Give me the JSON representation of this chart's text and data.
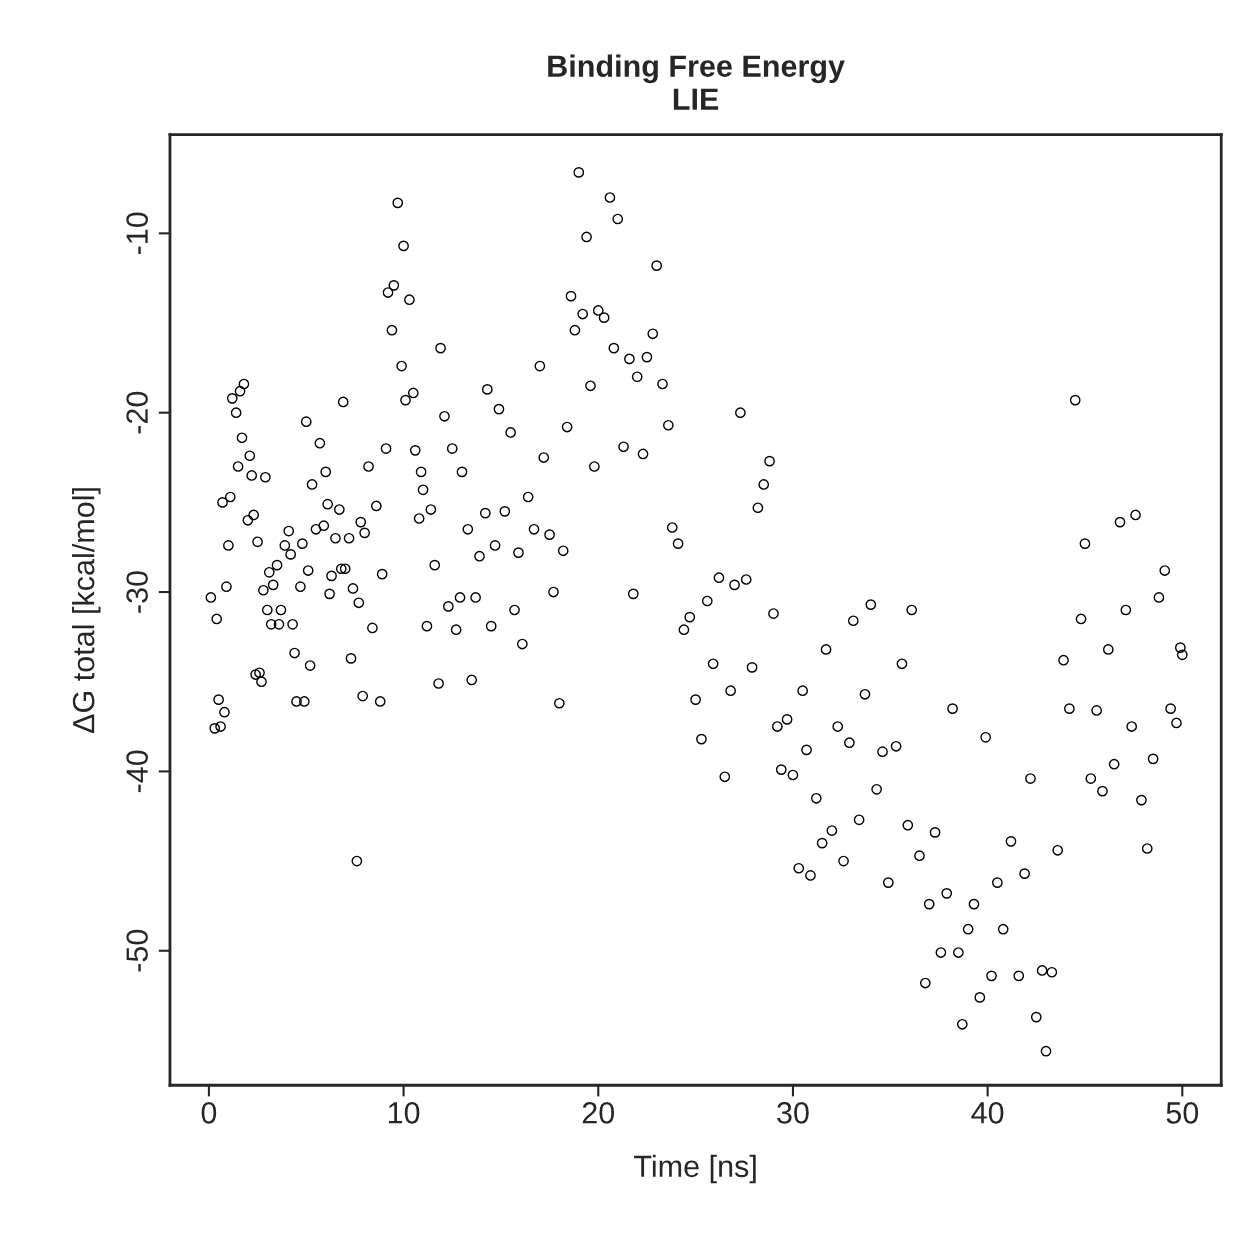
{
  "chart_data": {
    "type": "scatter",
    "title": "Binding Free Energy\nLIE",
    "xlabel": "Time [ns]",
    "ylabel": "ΔG total [kcal/mol]",
    "xlim": [
      -2,
      52
    ],
    "ylim": [
      -57.5,
      -4.5
    ],
    "xticks": [
      0,
      10,
      20,
      30,
      40,
      50
    ],
    "yticks": [
      -50,
      -40,
      -30,
      -20,
      -10
    ],
    "grid": false,
    "legend": false,
    "marker": "circle",
    "series": [
      {
        "color": "#000000",
        "x": [
          0.1,
          0.3,
          0.4,
          0.5,
          0.6,
          0.7,
          0.8,
          0.9,
          1.0,
          1.1,
          1.2,
          1.4,
          1.5,
          1.6,
          1.8,
          1.7,
          2.0,
          2.1,
          2.2,
          2.3,
          2.4,
          2.5,
          2.6,
          2.7,
          2.8,
          2.9,
          3.0,
          3.1,
          3.2,
          3.3,
          3.5,
          3.6,
          3.7,
          3.9,
          4.1,
          4.2,
          4.3,
          4.4,
          4.5,
          4.7,
          4.8,
          4.9,
          5.0,
          5.1,
          5.2,
          5.3,
          5.5,
          5.7,
          5.9,
          6.0,
          6.1,
          6.2,
          6.3,
          6.5,
          6.7,
          6.8,
          6.9,
          7.0,
          7.2,
          7.3,
          7.4,
          7.6,
          7.7,
          7.8,
          7.9,
          8.0,
          8.2,
          8.4,
          8.6,
          8.8,
          8.9,
          9.1,
          9.2,
          9.4,
          9.5,
          9.7,
          9.9,
          10.0,
          10.1,
          10.3,
          10.5,
          10.6,
          10.8,
          10.9,
          11.0,
          11.2,
          11.4,
          11.6,
          11.8,
          11.9,
          12.1,
          12.3,
          12.5,
          12.7,
          12.9,
          13.0,
          13.3,
          13.5,
          13.7,
          13.9,
          14.2,
          14.3,
          14.5,
          14.7,
          14.9,
          15.2,
          15.5,
          15.7,
          15.9,
          16.1,
          16.4,
          16.7,
          17.0,
          17.2,
          17.5,
          17.7,
          18.0,
          18.2,
          18.4,
          18.6,
          18.8,
          19.0,
          19.2,
          19.4,
          19.6,
          19.8,
          20.0,
          20.3,
          20.6,
          20.8,
          21.0,
          21.3,
          21.6,
          21.8,
          22.0,
          22.3,
          22.5,
          22.8,
          23.0,
          23.3,
          23.6,
          23.8,
          24.1,
          24.4,
          24.7,
          25.0,
          25.3,
          25.6,
          25.9,
          26.2,
          26.5,
          26.8,
          27.0,
          27.3,
          27.6,
          27.9,
          28.2,
          28.5,
          28.8,
          29.0,
          29.2,
          29.4,
          29.7,
          30.0,
          30.3,
          30.5,
          30.7,
          30.9,
          31.2,
          31.5,
          31.7,
          32.0,
          32.3,
          32.6,
          32.9,
          33.1,
          33.4,
          33.7,
          34.0,
          34.3,
          34.6,
          34.9,
          35.3,
          35.6,
          35.9,
          36.1,
          36.5,
          36.8,
          37.0,
          37.3,
          37.6,
          37.9,
          38.2,
          38.5,
          38.7,
          39.0,
          39.3,
          39.6,
          39.9,
          40.2,
          40.5,
          40.8,
          41.2,
          41.6,
          41.9,
          42.2,
          42.5,
          42.8,
          43.0,
          43.3,
          43.6,
          43.9,
          44.2,
          44.5,
          44.8,
          45.0,
          45.3,
          45.6,
          45.9,
          46.2,
          46.5,
          46.8,
          47.1,
          47.4,
          47.6,
          47.9,
          48.2,
          48.5,
          48.8,
          49.1,
          49.4,
          49.7,
          49.9,
          50.0
        ],
        "values": [
          -30.3,
          -37.6,
          -31.5,
          -36,
          -37.5,
          -25,
          -36.7,
          -29.7,
          -27.4,
          -24.7,
          -19.2,
          -20,
          -23,
          -18.8,
          -18.4,
          -21.4,
          -26,
          -22.4,
          -23.5,
          -25.7,
          -34.6,
          -27.2,
          -34.5,
          -35,
          -29.9,
          -23.6,
          -31,
          -28.9,
          -31.8,
          -29.6,
          -28.5,
          -31.8,
          -31,
          -27.4,
          -26.6,
          -27.9,
          -31.8,
          -33.4,
          -36.1,
          -29.7,
          -27.3,
          -36.1,
          -20.5,
          -28.8,
          -34.1,
          -24,
          -26.5,
          -21.7,
          -26.3,
          -23.3,
          -25.1,
          -30.1,
          -29.1,
          -27,
          -25.4,
          -28.7,
          -19.4,
          -28.7,
          -27,
          -33.7,
          -29.8,
          -45,
          -30.6,
          -26.1,
          -35.8,
          -26.7,
          -23,
          -32,
          -25.2,
          -36.1,
          -29,
          -22,
          -13.3,
          -15.4,
          -12.9,
          -8.3,
          -17.4,
          -10.7,
          -19.3,
          -13.7,
          -18.9,
          -22.1,
          -25.9,
          -23.3,
          -24.3,
          -31.9,
          -25.4,
          -28.5,
          -35.1,
          -16.4,
          -20.2,
          -30.8,
          -22,
          -32.1,
          -30.3,
          -23.3,
          -26.5,
          -34.9,
          -30.3,
          -28,
          -25.6,
          -18.7,
          -31.9,
          -27.4,
          -19.8,
          -25.5,
          -21.1,
          -31,
          -27.8,
          -32.9,
          -24.7,
          -26.5,
          -17.4,
          -22.5,
          -26.8,
          -30,
          -36.2,
          -27.7,
          -20.8,
          -13.5,
          -15.4,
          -6.6,
          -14.5,
          -10.2,
          -18.5,
          -23,
          -14.3,
          -14.7,
          -8,
          -16.4,
          -9.2,
          -21.9,
          -17.0,
          -30.1,
          -18,
          -22.3,
          -16.9,
          -15.6,
          -11.8,
          -18.4,
          -20.7,
          -26.4,
          -27.3,
          -32.1,
          -31.4,
          -36,
          -38.2,
          -30.5,
          -34,
          -29.2,
          -40.3,
          -35.5,
          -29.6,
          -20,
          -29.3,
          -34.2,
          -25.3,
          -24,
          -22.7,
          -31.2,
          -37.5,
          -39.9,
          -37.1,
          -40.2,
          -45.4,
          -35.5,
          -38.8,
          -45.8,
          -41.5,
          -44,
          -33.2,
          -43.3,
          -37.5,
          -45,
          -38.4,
          -31.6,
          -42.7,
          -35.7,
          -30.7,
          -41,
          -38.9,
          -46.2,
          -38.6,
          -34,
          -43,
          -31,
          -44.7,
          -51.8,
          -47.4,
          -43.4,
          -50.1,
          -46.8,
          -36.5,
          -50.1,
          -54.1,
          -48.8,
          -47.4,
          -52.6,
          -38.1,
          -51.4,
          -46.2,
          -48.8,
          -43.9,
          -51.4,
          -45.7,
          -40.4,
          -53.7,
          -51.1,
          -55.6,
          -51.2,
          -44.4,
          -33.8,
          -36.5,
          -19.3,
          -31.5,
          -27.3,
          -40.4,
          -36.6,
          -41.1,
          -33.2,
          -39.6,
          -26.1,
          -31,
          -37.5,
          -25.7,
          -41.6,
          -44.3,
          -39.3,
          -30.3,
          -28.8,
          -36.5,
          -37.3,
          -33.1,
          -33.5
        ]
      }
    ]
  }
}
